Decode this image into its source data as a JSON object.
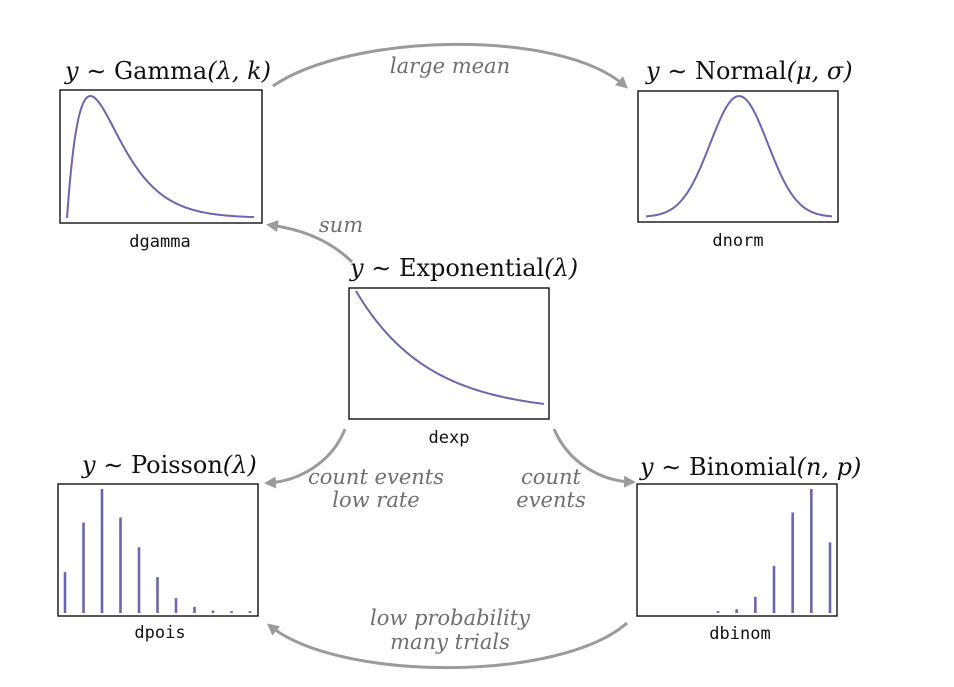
{
  "colors": {
    "curve": "#6a66b0",
    "arrow": "#9b9b9b",
    "label": "#6f6f6f",
    "frame": "#111111"
  },
  "distributions": {
    "gamma": {
      "title_var": "y",
      "title_rel": " ∼ ",
      "title_name": "Gamma",
      "title_args": "(λ, k)",
      "function": "dgamma"
    },
    "normal": {
      "title_var": "y",
      "title_rel": " ∼ ",
      "title_name": "Normal",
      "title_args": "(μ, σ)",
      "function": "dnorm"
    },
    "exponential": {
      "title_var": "y",
      "title_rel": " ∼ ",
      "title_name": "Exponential",
      "title_args": "(λ)",
      "function": "dexp"
    },
    "poisson": {
      "title_var": "y",
      "title_rel": " ∼ ",
      "title_name": "Poisson",
      "title_args": "(λ)",
      "function": "dpois",
      "spike_heights": [
        0.33,
        0.73,
        1.0,
        0.77,
        0.53,
        0.29,
        0.12,
        0.05,
        0.02,
        0.01,
        0.01
      ]
    },
    "binomial": {
      "title_var": "y",
      "title_rel": " ∼ ",
      "title_name": "Binomial",
      "title_args": "(n, p)",
      "function": "dbinom",
      "spike_heights": [
        0.01,
        0.03,
        0.13,
        0.38,
        0.81,
        1.0,
        0.57
      ]
    }
  },
  "arrows": {
    "large_mean": "large mean",
    "sum": "sum",
    "count_events_low_rate_1": "count events",
    "count_events_low_rate_2": "low rate",
    "count_events_1": "count",
    "count_events_2": "events",
    "low_probability_1": "low probability",
    "low_probability_2": "many trials"
  }
}
